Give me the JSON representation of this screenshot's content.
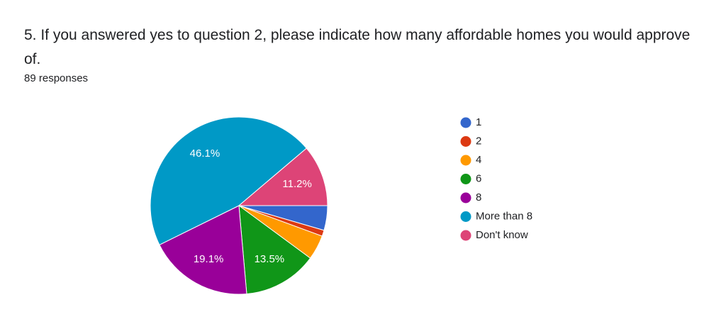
{
  "chart_data": {
    "type": "pie",
    "title": "5. If you answered yes to question 2, please indicate how many affordable homes you would approve of.",
    "subtitle": "89 responses",
    "categories": [
      "1",
      "2",
      "4",
      "6",
      "8",
      "More than 8",
      "Don't know"
    ],
    "values": [
      4.5,
      1.1,
      4.5,
      13.5,
      19.1,
      46.1,
      11.2
    ],
    "value_labels": [
      null,
      null,
      null,
      "13.5%",
      "19.1%",
      "46.1%",
      "11.2%"
    ],
    "colors": [
      "#3366cc",
      "#dc3912",
      "#ff9900",
      "#109618",
      "#990099",
      "#0099c6",
      "#dd4477"
    ]
  }
}
